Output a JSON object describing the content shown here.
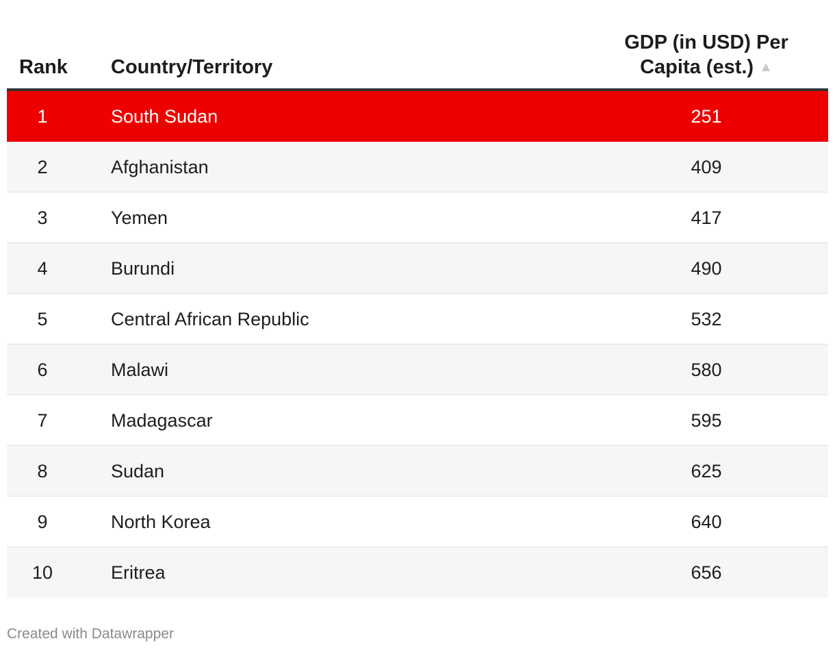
{
  "chart_data": {
    "type": "table",
    "columns": [
      "Rank",
      "Country/Territory",
      "GDP (in USD) Per Capita (est.)"
    ],
    "sort": "ascending",
    "rows": [
      {
        "rank": "1",
        "country": "South Sudan",
        "gdp": "251",
        "highlighted": true
      },
      {
        "rank": "2",
        "country": "Afghanistan",
        "gdp": "409",
        "highlighted": false
      },
      {
        "rank": "3",
        "country": "Yemen",
        "gdp": "417",
        "highlighted": false
      },
      {
        "rank": "4",
        "country": "Burundi",
        "gdp": "490",
        "highlighted": false
      },
      {
        "rank": "5",
        "country": "Central African Republic",
        "gdp": "532",
        "highlighted": false
      },
      {
        "rank": "6",
        "country": "Malawi",
        "gdp": "580",
        "highlighted": false
      },
      {
        "rank": "7",
        "country": "Madagascar",
        "gdp": "595",
        "highlighted": false
      },
      {
        "rank": "8",
        "country": "Sudan",
        "gdp": "625",
        "highlighted": false
      },
      {
        "rank": "9",
        "country": "North Korea",
        "gdp": "640",
        "highlighted": false
      },
      {
        "rank": "10",
        "country": "Eritrea",
        "gdp": "656",
        "highlighted": false
      }
    ]
  },
  "header": {
    "rank": "Rank",
    "country": "Country/Territory",
    "gdp_line1": "GDP (in USD) Per",
    "gdp_line2": "Capita (est.)",
    "sort_icon": "triangle-up-icon"
  },
  "colors": {
    "highlight": "#ee0000",
    "header_rule": "#333333",
    "stripe": "#f6f6f6"
  },
  "footer": {
    "credit": "Created with Datawrapper"
  }
}
